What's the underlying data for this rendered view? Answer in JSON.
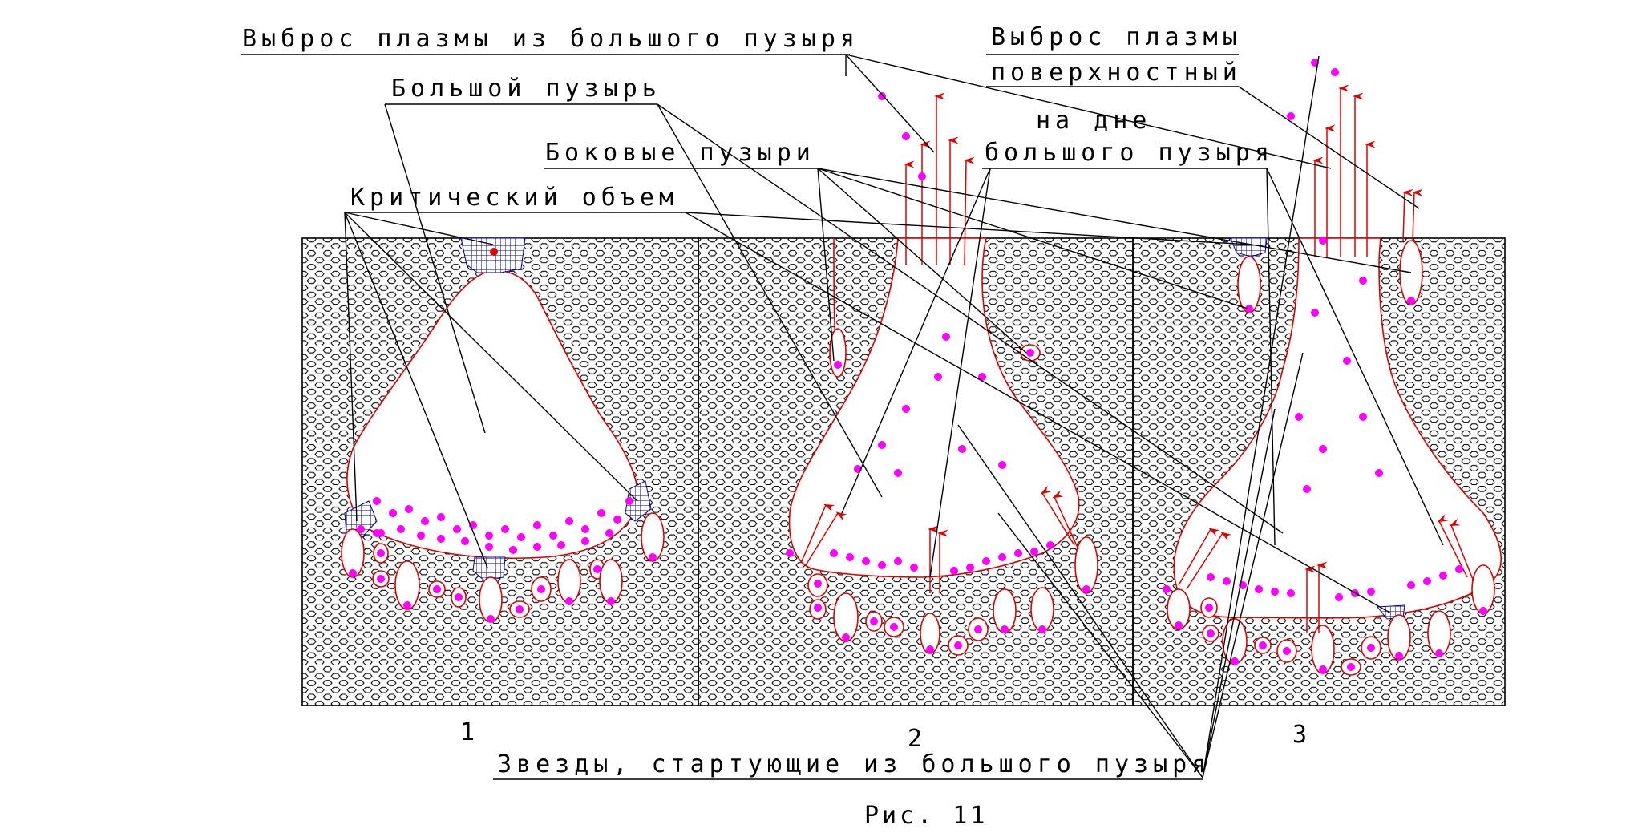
{
  "labels": {
    "large_bubble_ejection": "Выброс плазмы из большого пузыря",
    "surface_ejection_line1": "Выброс плазмы",
    "surface_ejection_line2": "поверхностный",
    "large_bubble": "Большой пузырь",
    "bottom_line1": "на дне",
    "bottom_line2": "большого пузыря",
    "side_bubbles": "Боковые пузыри",
    "critical_volume": "Критический объем",
    "stars_from_bubble": "Звезды, стартующие из большого пузыря"
  },
  "panels": [
    {
      "number": "1"
    },
    {
      "number": "2"
    },
    {
      "number": "3"
    }
  ],
  "caption": "Рис. 11",
  "colors": {
    "bubble_outline": "#e00000",
    "stars": "#ff00ff",
    "critical_grid": "#0000a0",
    "plasma_arrows": "#e00000"
  }
}
